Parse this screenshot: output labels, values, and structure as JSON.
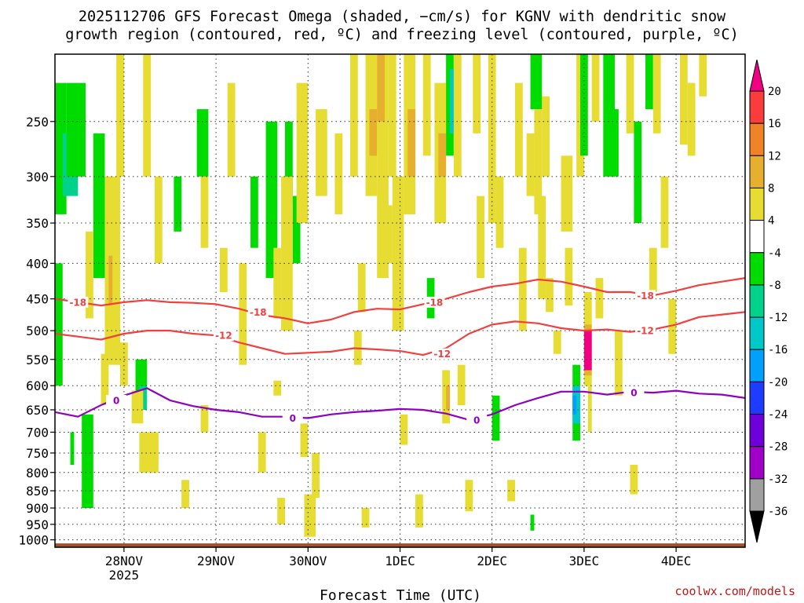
{
  "chart_data": {
    "type": "heatmap",
    "title_lines": [
      "2025112706 GFS Forecast Omega (shaded, −cm/s) for KGNV with dendritic snow",
      "growth region (contoured, red, ºC) and freezing level (contoured, purple, ºC)"
    ],
    "xlabel": "Forecast Time (UTC)",
    "credit": "coolwx.com/models",
    "x_ticks": [
      {
        "label": "28NOV",
        "sublabel": "2025",
        "hour": 18
      },
      {
        "label": "29NOV",
        "sublabel": "",
        "hour": 42
      },
      {
        "label": "30NOV",
        "sublabel": "",
        "hour": 66
      },
      {
        "label": "1DEC",
        "sublabel": "",
        "hour": 90
      },
      {
        "label": "2DEC",
        "sublabel": "",
        "hour": 114
      },
      {
        "label": "3DEC",
        "sublabel": "",
        "hour": 138
      },
      {
        "label": "4DEC",
        "sublabel": "",
        "hour": 162
      }
    ],
    "xlim_hours": [
      0,
      180
    ],
    "y_ticks": [
      250,
      300,
      350,
      400,
      450,
      500,
      550,
      600,
      650,
      700,
      750,
      800,
      850,
      900,
      950,
      1000
    ],
    "ylim_hPa": [
      1025,
      200
    ],
    "grid": true,
    "colorbar": {
      "levels": [
        -36,
        -32,
        -28,
        -24,
        -20,
        -16,
        -12,
        -8,
        -4,
        4,
        8,
        12,
        16,
        20
      ],
      "colors": [
        "#000000",
        "#a0a0a0",
        "#a000c8",
        "#6e00dc",
        "#1e3cff",
        "#00a0ff",
        "#00c8c8",
        "#00d28c",
        "#00dc00",
        "#ffffff",
        "#e6dc32",
        "#e6af2d",
        "#f08228",
        "#fa3c3c",
        "#f00082"
      ],
      "extend": "both"
    },
    "omega_cells": [
      {
        "t0": 0,
        "t1": 3,
        "p0": 220,
        "p1": 340,
        "v": -6
      },
      {
        "t0": 2,
        "t1": 6,
        "p0": 260,
        "p1": 320,
        "v": -10
      },
      {
        "t0": 3,
        "t1": 8,
        "p0": 220,
        "p1": 300,
        "v": -6
      },
      {
        "t0": 0,
        "t1": 2,
        "p0": 400,
        "p1": 600,
        "v": -6
      },
      {
        "t0": 4,
        "t1": 5,
        "p0": 700,
        "p1": 780,
        "v": -6
      },
      {
        "t0": 7,
        "t1": 10,
        "p0": 660,
        "p1": 900,
        "v": -6
      },
      {
        "t0": 10,
        "t1": 13,
        "p0": 260,
        "p1": 420,
        "v": -6
      },
      {
        "t0": 8,
        "t1": 10,
        "p0": 360,
        "p1": 480,
        "v": 5
      },
      {
        "t0": 12,
        "t1": 14,
        "p0": 540,
        "p1": 640,
        "v": 5
      },
      {
        "t0": 13,
        "t1": 17,
        "p0": 300,
        "p1": 560,
        "v": 6
      },
      {
        "t0": 14,
        "t1": 15,
        "p0": 390,
        "p1": 460,
        "v": 10
      },
      {
        "t0": 16,
        "t1": 18,
        "p0": 200,
        "p1": 300,
        "v": 5
      },
      {
        "t0": 17,
        "t1": 19,
        "p0": 520,
        "p1": 600,
        "v": 5
      },
      {
        "t0": 21,
        "t1": 24,
        "p0": 550,
        "p1": 610,
        "v": -6
      },
      {
        "t0": 22,
        "t1": 24,
        "p0": 600,
        "p1": 650,
        "v": -10
      },
      {
        "t0": 20,
        "t1": 23,
        "p0": 610,
        "p1": 680,
        "v": 5
      },
      {
        "t0": 22,
        "t1": 27,
        "p0": 700,
        "p1": 800,
        "v": 5
      },
      {
        "t0": 23,
        "t1": 25,
        "p0": 200,
        "p1": 300,
        "v": 5
      },
      {
        "t0": 26,
        "t1": 28,
        "p0": 300,
        "p1": 400,
        "v": 6
      },
      {
        "t0": 33,
        "t1": 35,
        "p0": 820,
        "p1": 900,
        "v": 5
      },
      {
        "t0": 31,
        "t1": 33,
        "p0": 300,
        "p1": 360,
        "v": -6
      },
      {
        "t0": 37,
        "t1": 40,
        "p0": 240,
        "p1": 300,
        "v": -6
      },
      {
        "t0": 38,
        "t1": 40,
        "p0": 300,
        "p1": 380,
        "v": 6
      },
      {
        "t0": 38,
        "t1": 40,
        "p0": 640,
        "p1": 700,
        "v": 5
      },
      {
        "t0": 43,
        "t1": 45,
        "p0": 380,
        "p1": 440,
        "v": 5
      },
      {
        "t0": 45,
        "t1": 47,
        "p0": 220,
        "p1": 300,
        "v": 5
      },
      {
        "t0": 48,
        "t1": 50,
        "p0": 400,
        "p1": 560,
        "v": 5
      },
      {
        "t0": 51,
        "t1": 53,
        "p0": 300,
        "p1": 380,
        "v": -6
      },
      {
        "t0": 53,
        "t1": 55,
        "p0": 700,
        "p1": 800,
        "v": 5
      },
      {
        "t0": 55,
        "t1": 58,
        "p0": 250,
        "p1": 420,
        "v": -6
      },
      {
        "t0": 57,
        "t1": 59,
        "p0": 380,
        "p1": 480,
        "v": 5
      },
      {
        "t0": 57,
        "t1": 59,
        "p0": 590,
        "p1": 620,
        "v": 5
      },
      {
        "t0": 58,
        "t1": 60,
        "p0": 870,
        "p1": 950,
        "v": 5
      },
      {
        "t0": 60,
        "t1": 62,
        "p0": 250,
        "p1": 330,
        "v": -6
      },
      {
        "t0": 62,
        "t1": 64,
        "p0": 320,
        "p1": 400,
        "v": -6
      },
      {
        "t0": 59,
        "t1": 62,
        "p0": 300,
        "p1": 500,
        "v": 5
      },
      {
        "t0": 63,
        "t1": 66,
        "p0": 220,
        "p1": 350,
        "v": 5
      },
      {
        "t0": 64,
        "t1": 66,
        "p0": 680,
        "p1": 760,
        "v": 5
      },
      {
        "t0": 65,
        "t1": 68,
        "p0": 860,
        "p1": 990,
        "v": 5
      },
      {
        "t0": 67,
        "t1": 69,
        "p0": 750,
        "p1": 870,
        "v": 5
      },
      {
        "t0": 68,
        "t1": 71,
        "p0": 240,
        "p1": 320,
        "v": 5
      },
      {
        "t0": 73,
        "t1": 75,
        "p0": 260,
        "p1": 340,
        "v": 5
      },
      {
        "t0": 77,
        "t1": 79,
        "p0": 200,
        "p1": 300,
        "v": 5
      },
      {
        "t0": 78,
        "t1": 80,
        "p0": 500,
        "p1": 560,
        "v": 5
      },
      {
        "t0": 79,
        "t1": 81,
        "p0": 400,
        "p1": 470,
        "v": 5
      },
      {
        "t0": 80,
        "t1": 82,
        "p0": 900,
        "p1": 960,
        "v": 5
      },
      {
        "t0": 81,
        "t1": 84,
        "p0": 200,
        "p1": 320,
        "v": 6
      },
      {
        "t0": 82,
        "t1": 84,
        "p0": 240,
        "p1": 280,
        "v": 11
      },
      {
        "t0": 84,
        "t1": 87,
        "p0": 200,
        "p1": 420,
        "v": 5
      },
      {
        "t0": 84,
        "t1": 86,
        "p0": 200,
        "p1": 250,
        "v": 9
      },
      {
        "t0": 86,
        "t1": 88,
        "p0": 330,
        "p1": 400,
        "v": 5
      },
      {
        "t0": 87,
        "t1": 89,
        "p0": 200,
        "p1": 300,
        "v": 6
      },
      {
        "t0": 88,
        "t1": 91,
        "p0": 300,
        "p1": 500,
        "v": 5
      },
      {
        "t0": 90,
        "t1": 92,
        "p0": 660,
        "p1": 730,
        "v": 5
      },
      {
        "t0": 91,
        "t1": 94,
        "p0": 200,
        "p1": 340,
        "v": 5
      },
      {
        "t0": 92,
        "t1": 94,
        "p0": 240,
        "p1": 300,
        "v": 9
      },
      {
        "t0": 94,
        "t1": 96,
        "p0": 860,
        "p1": 960,
        "v": 5
      },
      {
        "t0": 96,
        "t1": 98,
        "p0": 200,
        "p1": 280,
        "v": 5
      },
      {
        "t0": 97,
        "t1": 99,
        "p0": 420,
        "p1": 480,
        "v": -6
      },
      {
        "t0": 99,
        "t1": 102,
        "p0": 220,
        "p1": 350,
        "v": 6
      },
      {
        "t0": 100,
        "t1": 102,
        "p0": 260,
        "p1": 300,
        "v": 10
      },
      {
        "t0": 102,
        "t1": 104,
        "p0": 200,
        "p1": 280,
        "v": -6
      },
      {
        "t0": 103,
        "t1": 104,
        "p0": 210,
        "p1": 260,
        "v": -14
      },
      {
        "t0": 101,
        "t1": 103,
        "p0": 570,
        "p1": 680,
        "v": 6
      },
      {
        "t0": 102,
        "t1": 103,
        "p0": 600,
        "p1": 650,
        "v": 10
      },
      {
        "t0": 104,
        "t1": 106,
        "p0": 200,
        "p1": 300,
        "v": 5
      },
      {
        "t0": 105,
        "t1": 107,
        "p0": 560,
        "p1": 640,
        "v": 5
      },
      {
        "t0": 107,
        "t1": 109,
        "p0": 820,
        "p1": 910,
        "v": 5
      },
      {
        "t0": 109,
        "t1": 111,
        "p0": 200,
        "p1": 260,
        "v": 5
      },
      {
        "t0": 110,
        "t1": 112,
        "p0": 320,
        "p1": 420,
        "v": 5
      },
      {
        "t0": 113,
        "t1": 115,
        "p0": 200,
        "p1": 350,
        "v": 5
      },
      {
        "t0": 114,
        "t1": 116,
        "p0": 620,
        "p1": 720,
        "v": -6
      },
      {
        "t0": 115,
        "t1": 117,
        "p0": 300,
        "p1": 380,
        "v": 5
      },
      {
        "t0": 118,
        "t1": 120,
        "p0": 820,
        "p1": 880,
        "v": 5
      },
      {
        "t0": 120,
        "t1": 122,
        "p0": 220,
        "p1": 300,
        "v": 5
      },
      {
        "t0": 121,
        "t1": 123,
        "p0": 380,
        "p1": 500,
        "v": 5
      },
      {
        "t0": 123,
        "t1": 125,
        "p0": 260,
        "p1": 320,
        "v": 5
      },
      {
        "t0": 124,
        "t1": 125,
        "p0": 920,
        "p1": 970,
        "v": -6
      },
      {
        "t0": 125,
        "t1": 127,
        "p0": 240,
        "p1": 340,
        "v": 6
      },
      {
        "t0": 127,
        "t1": 129,
        "p0": 230,
        "p1": 300,
        "v": 5
      },
      {
        "t0": 126,
        "t1": 128,
        "p0": 320,
        "p1": 450,
        "v": 7
      },
      {
        "t0": 124,
        "t1": 127,
        "p0": 200,
        "p1": 240,
        "v": -6
      },
      {
        "t0": 128,
        "t1": 130,
        "p0": 420,
        "p1": 470,
        "v": 5
      },
      {
        "t0": 130,
        "t1": 132,
        "p0": 500,
        "p1": 540,
        "v": 5
      },
      {
        "t0": 132,
        "t1": 135,
        "p0": 280,
        "p1": 360,
        "v": 5
      },
      {
        "t0": 133,
        "t1": 135,
        "p0": 380,
        "p1": 460,
        "v": 5
      },
      {
        "t0": 135,
        "t1": 137,
        "p0": 560,
        "p1": 720,
        "v": -6
      },
      {
        "t0": 135,
        "t1": 137,
        "p0": 600,
        "p1": 680,
        "v": -14
      },
      {
        "t0": 135,
        "t1": 136,
        "p0": 620,
        "p1": 660,
        "v": -18
      },
      {
        "t0": 136,
        "t1": 138,
        "p0": 200,
        "p1": 300,
        "v": 5
      },
      {
        "t0": 137,
        "t1": 139,
        "p0": 200,
        "p1": 280,
        "v": -6
      },
      {
        "t0": 138,
        "t1": 140,
        "p0": 440,
        "p1": 600,
        "v": 5
      },
      {
        "t0": 138,
        "t1": 140,
        "p0": 490,
        "p1": 580,
        "v": 10
      },
      {
        "t0": 138,
        "t1": 140,
        "p0": 500,
        "p1": 570,
        "v": 22
      },
      {
        "t0": 139,
        "t1": 140,
        "p0": 600,
        "p1": 700,
        "v": 5
      },
      {
        "t0": 140,
        "t1": 142,
        "p0": 200,
        "p1": 250,
        "v": 5
      },
      {
        "t0": 141,
        "t1": 143,
        "p0": 420,
        "p1": 480,
        "v": 5
      },
      {
        "t0": 143,
        "t1": 146,
        "p0": 200,
        "p1": 300,
        "v": -6
      },
      {
        "t0": 145,
        "t1": 147,
        "p0": 240,
        "p1": 300,
        "v": -6
      },
      {
        "t0": 146,
        "t1": 148,
        "p0": 500,
        "p1": 620,
        "v": 5
      },
      {
        "t0": 149,
        "t1": 151,
        "p0": 200,
        "p1": 260,
        "v": 5
      },
      {
        "t0": 151,
        "t1": 153,
        "p0": 250,
        "p1": 350,
        "v": -6
      },
      {
        "t0": 150,
        "t1": 152,
        "p0": 780,
        "p1": 860,
        "v": 5
      },
      {
        "t0": 154,
        "t1": 156,
        "p0": 200,
        "p1": 240,
        "v": -6
      },
      {
        "t0": 155,
        "t1": 157,
        "p0": 380,
        "p1": 440,
        "v": 5
      },
      {
        "t0": 156,
        "t1": 158,
        "p0": 200,
        "p1": 260,
        "v": 5
      },
      {
        "t0": 158,
        "t1": 160,
        "p0": 300,
        "p1": 380,
        "v": 5
      },
      {
        "t0": 160,
        "t1": 162,
        "p0": 450,
        "p1": 540,
        "v": 5
      },
      {
        "t0": 163,
        "t1": 165,
        "p0": 200,
        "p1": 270,
        "v": 5
      },
      {
        "t0": 165,
        "t1": 167,
        "p0": 220,
        "p1": 280,
        "v": 5
      },
      {
        "t0": 168,
        "t1": 170,
        "p0": 200,
        "p1": 230,
        "v": 5
      }
    ],
    "contours": [
      {
        "level": -18,
        "color": "#f04040",
        "t": [
          0,
          6,
          12,
          18,
          24,
          30,
          36,
          42,
          48,
          54,
          60,
          66,
          72,
          78,
          84,
          90,
          96,
          102,
          108,
          114,
          120,
          126,
          132,
          138,
          144,
          150,
          156,
          162,
          168,
          174,
          180
        ],
        "p": [
          450,
          455,
          460,
          455,
          452,
          455,
          456,
          458,
          465,
          475,
          480,
          488,
          482,
          470,
          465,
          466,
          458,
          450,
          440,
          432,
          428,
          422,
          425,
          432,
          440,
          440,
          445,
          438,
          430,
          425,
          420
        ],
        "labels": [
          {
            "t": 6,
            "p": 455
          },
          {
            "t": 53,
            "p": 470
          },
          {
            "t": 99,
            "p": 455
          },
          {
            "t": 154,
            "p": 445
          }
        ]
      },
      {
        "level": -12,
        "color": "#f04040",
        "t": [
          0,
          6,
          12,
          18,
          24,
          30,
          36,
          42,
          48,
          54,
          60,
          66,
          72,
          78,
          84,
          90,
          96,
          102,
          108,
          114,
          120,
          126,
          132,
          138,
          144,
          150,
          156,
          162,
          168,
          174,
          180
        ],
        "p": [
          505,
          510,
          515,
          505,
          500,
          500,
          505,
          508,
          520,
          530,
          540,
          538,
          536,
          530,
          532,
          535,
          542,
          530,
          505,
          490,
          485,
          488,
          496,
          500,
          498,
          502,
          498,
          490,
          478,
          474,
          470
        ],
        "labels": [
          {
            "t": 44,
            "p": 508
          },
          {
            "t": 101,
            "p": 540
          },
          {
            "t": 154,
            "p": 500
          }
        ]
      },
      {
        "level": 0,
        "color": "#9000c0",
        "t": [
          0,
          6,
          12,
          18,
          24,
          30,
          36,
          42,
          48,
          54,
          60,
          66,
          72,
          78,
          84,
          90,
          96,
          102,
          108,
          114,
          120,
          126,
          132,
          138,
          144,
          150,
          156,
          162,
          168,
          174,
          180
        ],
        "p": [
          655,
          665,
          640,
          620,
          605,
          630,
          642,
          650,
          655,
          665,
          665,
          668,
          660,
          655,
          652,
          648,
          650,
          658,
          672,
          660,
          640,
          625,
          612,
          612,
          618,
          612,
          614,
          610,
          616,
          618,
          625
        ],
        "labels": [
          {
            "t": 16,
            "p": 630
          },
          {
            "t": 62,
            "p": 668
          },
          {
            "t": 110,
            "p": 672
          },
          {
            "t": 151,
            "p": 614
          }
        ]
      }
    ]
  }
}
